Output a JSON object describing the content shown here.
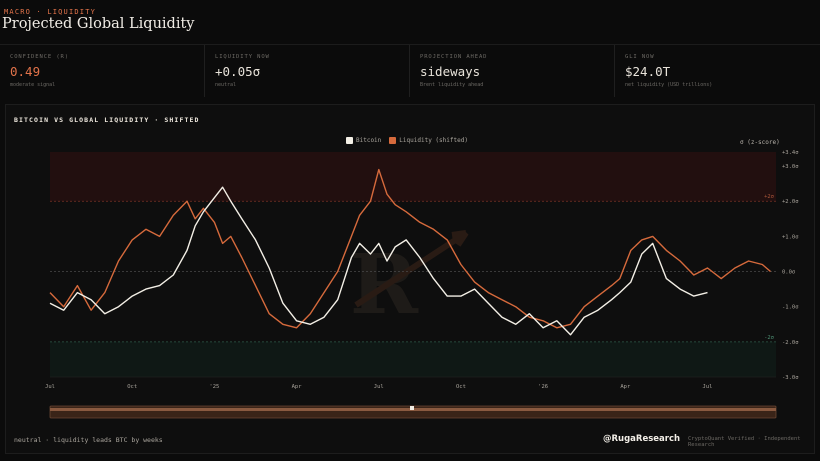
{
  "header": {
    "eyebrow": "MACRO · LIQUIDITY",
    "title": "Projected Global Liquidity"
  },
  "stats": [
    {
      "label": "CONFIDENCE (R)",
      "value": "0.49",
      "sub": "moderate signal",
      "accent": true
    },
    {
      "label": "LIQUIDITY NOW",
      "value": "+0.05σ",
      "sub": "neutral",
      "accent": false
    },
    {
      "label": "PROJECTION AHEAD",
      "value": "sideways",
      "sub": "Brent liquidity ahead",
      "accent": false
    },
    {
      "label": "GLI NOW",
      "value": "$24.0T",
      "sub": "net liquidity (USD trillions)",
      "accent": false
    }
  ],
  "panel": {
    "title": "BITCOIN VS GLOBAL LIQUIDITY · SHIFTED",
    "z_label": "σ (z-score)",
    "footer_note": "neutral · liquidity leads BTC by weeks",
    "brand": "@RugaResearch",
    "brand_sub": "CryptoQuant Verified · Independent Research"
  },
  "colors": {
    "bitcoin": "#f3efe6",
    "liquidity": "#d66a3c",
    "upper_band": "#2a1010",
    "lower_band": "#0f1a16",
    "accent": "#e2734a"
  },
  "chart_data": {
    "type": "line",
    "title": "BITCOIN VS GLOBAL LIQUIDITY · SHIFTED",
    "ylabel": "σ (z-score)",
    "ylim": [
      -3.0,
      3.4
    ],
    "y_ticks": [
      3.4,
      3.0,
      2.0,
      1.0,
      0.0,
      -1.0,
      -2.0,
      -3.0
    ],
    "y_tick_labels": [
      "+3.4σ",
      "+3.0σ",
      "+2.0σ",
      "+1.0σ",
      "0.0σ",
      "-1.0σ",
      "-2.0σ",
      "-3.0σ"
    ],
    "band_labels": {
      "upper": "+2σ",
      "lower": "-2σ"
    },
    "bands": {
      "upper": [
        2.0,
        3.4
      ],
      "lower": [
        -3.0,
        -2.0
      ]
    },
    "x_tick_labels": [
      "Jul",
      "Oct",
      "'25",
      "Apr",
      "Jul",
      "Oct",
      "'26",
      "Apr",
      "Jul"
    ],
    "x_tick_positions": [
      0,
      3,
      6,
      9,
      12,
      15,
      18,
      21,
      24
    ],
    "xlim": [
      0,
      26.5
    ],
    "x_unit": "months since Jul '24",
    "legend_position": "top-center",
    "grid": false,
    "series": [
      {
        "name": "Bitcoin",
        "x": [
          0,
          0.5,
          1,
          1.5,
          2,
          2.5,
          3,
          3.5,
          4,
          4.5,
          5,
          5.3,
          5.6,
          6,
          6.3,
          6.6,
          7,
          7.5,
          8,
          8.5,
          9,
          9.5,
          10,
          10.5,
          11,
          11.3,
          11.7,
          12,
          12.3,
          12.6,
          13,
          13.5,
          14,
          14.5,
          15,
          15.5,
          16,
          16.5,
          17,
          17.5,
          18,
          18.5,
          19,
          19.5,
          20,
          20.5,
          20.8,
          21.2,
          21.6,
          22,
          22.5,
          23,
          23.5,
          24
        ],
        "values": [
          -0.9,
          -1.1,
          -0.6,
          -0.8,
          -1.2,
          -1.0,
          -0.7,
          -0.5,
          -0.4,
          -0.1,
          0.6,
          1.3,
          1.7,
          2.1,
          2.4,
          2.0,
          1.5,
          0.9,
          0.1,
          -0.9,
          -1.4,
          -1.5,
          -1.3,
          -0.8,
          0.4,
          0.8,
          0.5,
          0.8,
          0.3,
          0.7,
          0.9,
          0.4,
          -0.2,
          -0.7,
          -0.7,
          -0.5,
          -0.9,
          -1.3,
          -1.5,
          -1.2,
          -1.6,
          -1.4,
          -1.8,
          -1.3,
          -1.1,
          -0.8,
          -0.6,
          -0.3,
          0.5,
          0.8,
          -0.2,
          -0.5,
          -0.7,
          -0.6
        ]
      },
      {
        "name": "Liquidity (shifted)",
        "x": [
          0,
          0.5,
          1,
          1.5,
          2,
          2.5,
          3,
          3.5,
          4,
          4.5,
          5,
          5.3,
          5.6,
          6,
          6.3,
          6.6,
          7,
          7.5,
          8,
          8.5,
          9,
          9.5,
          10,
          10.5,
          11,
          11.3,
          11.7,
          12,
          12.3,
          12.6,
          13,
          13.5,
          14,
          14.5,
          15,
          15.5,
          16,
          16.5,
          17,
          17.5,
          18,
          18.5,
          19,
          19.5,
          20,
          20.5,
          20.8,
          21.2,
          21.6,
          22,
          22.5,
          23,
          23.5,
          24,
          24.5,
          25,
          25.5,
          26,
          26.3
        ],
        "values": [
          -0.6,
          -1.0,
          -0.4,
          -1.1,
          -0.6,
          0.3,
          0.9,
          1.2,
          1.0,
          1.6,
          2.0,
          1.5,
          1.8,
          1.4,
          0.8,
          1.0,
          0.4,
          -0.4,
          -1.2,
          -1.5,
          -1.6,
          -1.2,
          -0.6,
          0.0,
          1.0,
          1.6,
          2.0,
          2.9,
          2.2,
          1.9,
          1.7,
          1.4,
          1.2,
          0.9,
          0.2,
          -0.3,
          -0.6,
          -0.8,
          -1.0,
          -1.3,
          -1.4,
          -1.6,
          -1.5,
          -1.0,
          -0.7,
          -0.4,
          -0.2,
          0.6,
          0.9,
          1.0,
          0.6,
          0.3,
          -0.1,
          0.1,
          -0.2,
          0.1,
          0.3,
          0.2,
          0.0
        ]
      }
    ]
  }
}
